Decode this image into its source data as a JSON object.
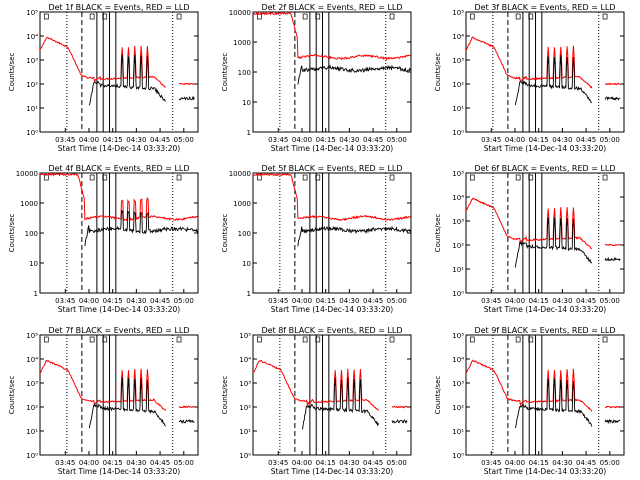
{
  "figure": {
    "xlabel": "Start Time (14-Dec-14 03:33:20)",
    "ylabel": "Counts/sec",
    "x_ticks": [
      "03:45",
      "04:00",
      "04:15",
      "04:30",
      "04:45",
      "05:00"
    ],
    "colors": {
      "events": "#000000",
      "lld": "#ff0000",
      "axes": "#000000"
    }
  },
  "chart_data": [
    {
      "type": "line",
      "title": "Det 1f BLACK = Events, RED = LLD",
      "yscale": "log",
      "ylim": [
        1,
        100000
      ],
      "yticks": [
        "10⁰",
        "10¹",
        "10²",
        "10³",
        "10⁴",
        "10⁵"
      ],
      "x_ticks": [
        "03:45",
        "04:00",
        "04:15",
        "04:30",
        "04:45",
        "05:00"
      ]
    },
    {
      "type": "line",
      "title": "Det 2f BLACK = Events, RED = LLD",
      "yscale": "log",
      "ylim": [
        1,
        10000
      ],
      "yticks": [
        "1",
        "10",
        "100",
        "1000",
        "10000"
      ],
      "x_ticks": [
        "03:45",
        "04:00",
        "04:15",
        "04:30",
        "04:45",
        "05:00"
      ]
    },
    {
      "type": "line",
      "title": "Det 3f BLACK = Events, RED = LLD",
      "yscale": "log",
      "ylim": [
        1,
        100000
      ],
      "yticks": [
        "10⁰",
        "10¹",
        "10²",
        "10³",
        "10⁴",
        "10⁵"
      ],
      "x_ticks": [
        "03:45",
        "04:00",
        "04:15",
        "04:30",
        "04:45",
        "05:00"
      ]
    },
    {
      "type": "line",
      "title": "Det 4f BLACK = Events, RED = LLD",
      "yscale": "log",
      "ylim": [
        1,
        10000
      ],
      "yticks": [
        "1",
        "10",
        "100",
        "1000",
        "10000"
      ],
      "x_ticks": [
        "03:45",
        "04:00",
        "04:15",
        "04:30",
        "04:45",
        "05:00"
      ]
    },
    {
      "type": "line",
      "title": "Det 5f BLACK = Events, RED = LLD",
      "yscale": "log",
      "ylim": [
        1,
        10000
      ],
      "yticks": [
        "1",
        "10",
        "100",
        "1000",
        "10000"
      ],
      "x_ticks": [
        "03:45",
        "04:00",
        "04:15",
        "04:30",
        "04:45",
        "05:00"
      ]
    },
    {
      "type": "line",
      "title": "Det 6f BLACK = Events, RED = LLD",
      "yscale": "log",
      "ylim": [
        1,
        100000
      ],
      "yticks": [
        "10⁰",
        "10¹",
        "10²",
        "10³",
        "10⁴",
        "10⁵"
      ],
      "x_ticks": [
        "03:45",
        "04:00",
        "04:15",
        "04:30",
        "04:45",
        "05:00"
      ]
    },
    {
      "type": "line",
      "title": "Det 7f BLACK = Events, RED = LLD",
      "yscale": "log",
      "ylim": [
        1,
        100000
      ],
      "yticks": [
        "10⁰",
        "10¹",
        "10²",
        "10³",
        "10⁴",
        "10⁵"
      ],
      "x_ticks": [
        "03:45",
        "04:00",
        "04:15",
        "04:30",
        "04:45",
        "05:00"
      ]
    },
    {
      "type": "line",
      "title": "Det 8f BLACK = Events, RED = LLD",
      "yscale": "log",
      "ylim": [
        1,
        100000
      ],
      "yticks": [
        "10⁰",
        "10¹",
        "10²",
        "10³",
        "10⁴",
        "10⁵"
      ],
      "x_ticks": [
        "03:45",
        "04:00",
        "04:15",
        "04:30",
        "04:45",
        "05:00"
      ]
    },
    {
      "type": "line",
      "title": "Det 9f BLACK = Events, RED = LLD",
      "yscale": "log",
      "ylim": [
        1,
        100000
      ],
      "yticks": [
        "10⁰",
        "10¹",
        "10²",
        "10³",
        "10⁴",
        "10⁵"
      ],
      "x_ticks": [
        "03:45",
        "04:00",
        "04:15",
        "04:30",
        "04:45",
        "05:00"
      ]
    }
  ]
}
